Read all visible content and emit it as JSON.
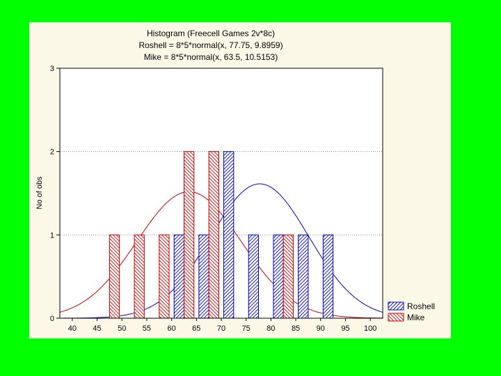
{
  "page": {
    "background": "#00ff00"
  },
  "chart_data": {
    "type": "bar",
    "title": "Histogram (Freecell Games 2v*8c)",
    "subtitle_lines": [
      "Roshell = 8*5*normal(x, 77.75, 9.8959)",
      "Mike = 8*5*normal(x, 63.5, 10.5153)"
    ],
    "xlabel": "",
    "ylabel": "No of obs",
    "xlim": [
      37.5,
      102.5
    ],
    "ylim": [
      0,
      3
    ],
    "x_ticks": [
      40,
      45,
      50,
      55,
      60,
      65,
      70,
      75,
      80,
      85,
      90,
      95,
      100
    ],
    "y_ticks": [
      0,
      1,
      2,
      3
    ],
    "grid": {
      "horizontal_dotted": true
    },
    "legend_position": "right-bottom",
    "panel_background": "#fbf8e8",
    "plot_background": "#ffffff",
    "series": [
      {
        "name": "Roshell",
        "color": "#0000cc",
        "bins": [
          {
            "x": 61.5,
            "value": 1
          },
          {
            "x": 66.5,
            "value": 1
          },
          {
            "x": 71.5,
            "value": 2
          },
          {
            "x": 76.5,
            "value": 1
          },
          {
            "x": 81.5,
            "value": 1
          },
          {
            "x": 86.5,
            "value": 1
          },
          {
            "x": 91.5,
            "value": 1
          }
        ],
        "fit": {
          "scale": 40,
          "mean": 77.75,
          "sd": 9.8959
        }
      },
      {
        "name": "Mike",
        "color": "#cc0000",
        "bins": [
          {
            "x": 48.5,
            "value": 1
          },
          {
            "x": 53.5,
            "value": 1
          },
          {
            "x": 58.5,
            "value": 1
          },
          {
            "x": 63.5,
            "value": 2
          },
          {
            "x": 68.5,
            "value": 2
          },
          {
            "x": 83.5,
            "value": 1
          }
        ],
        "fit": {
          "scale": 40,
          "mean": 63.5,
          "sd": 10.5153
        }
      }
    ]
  }
}
